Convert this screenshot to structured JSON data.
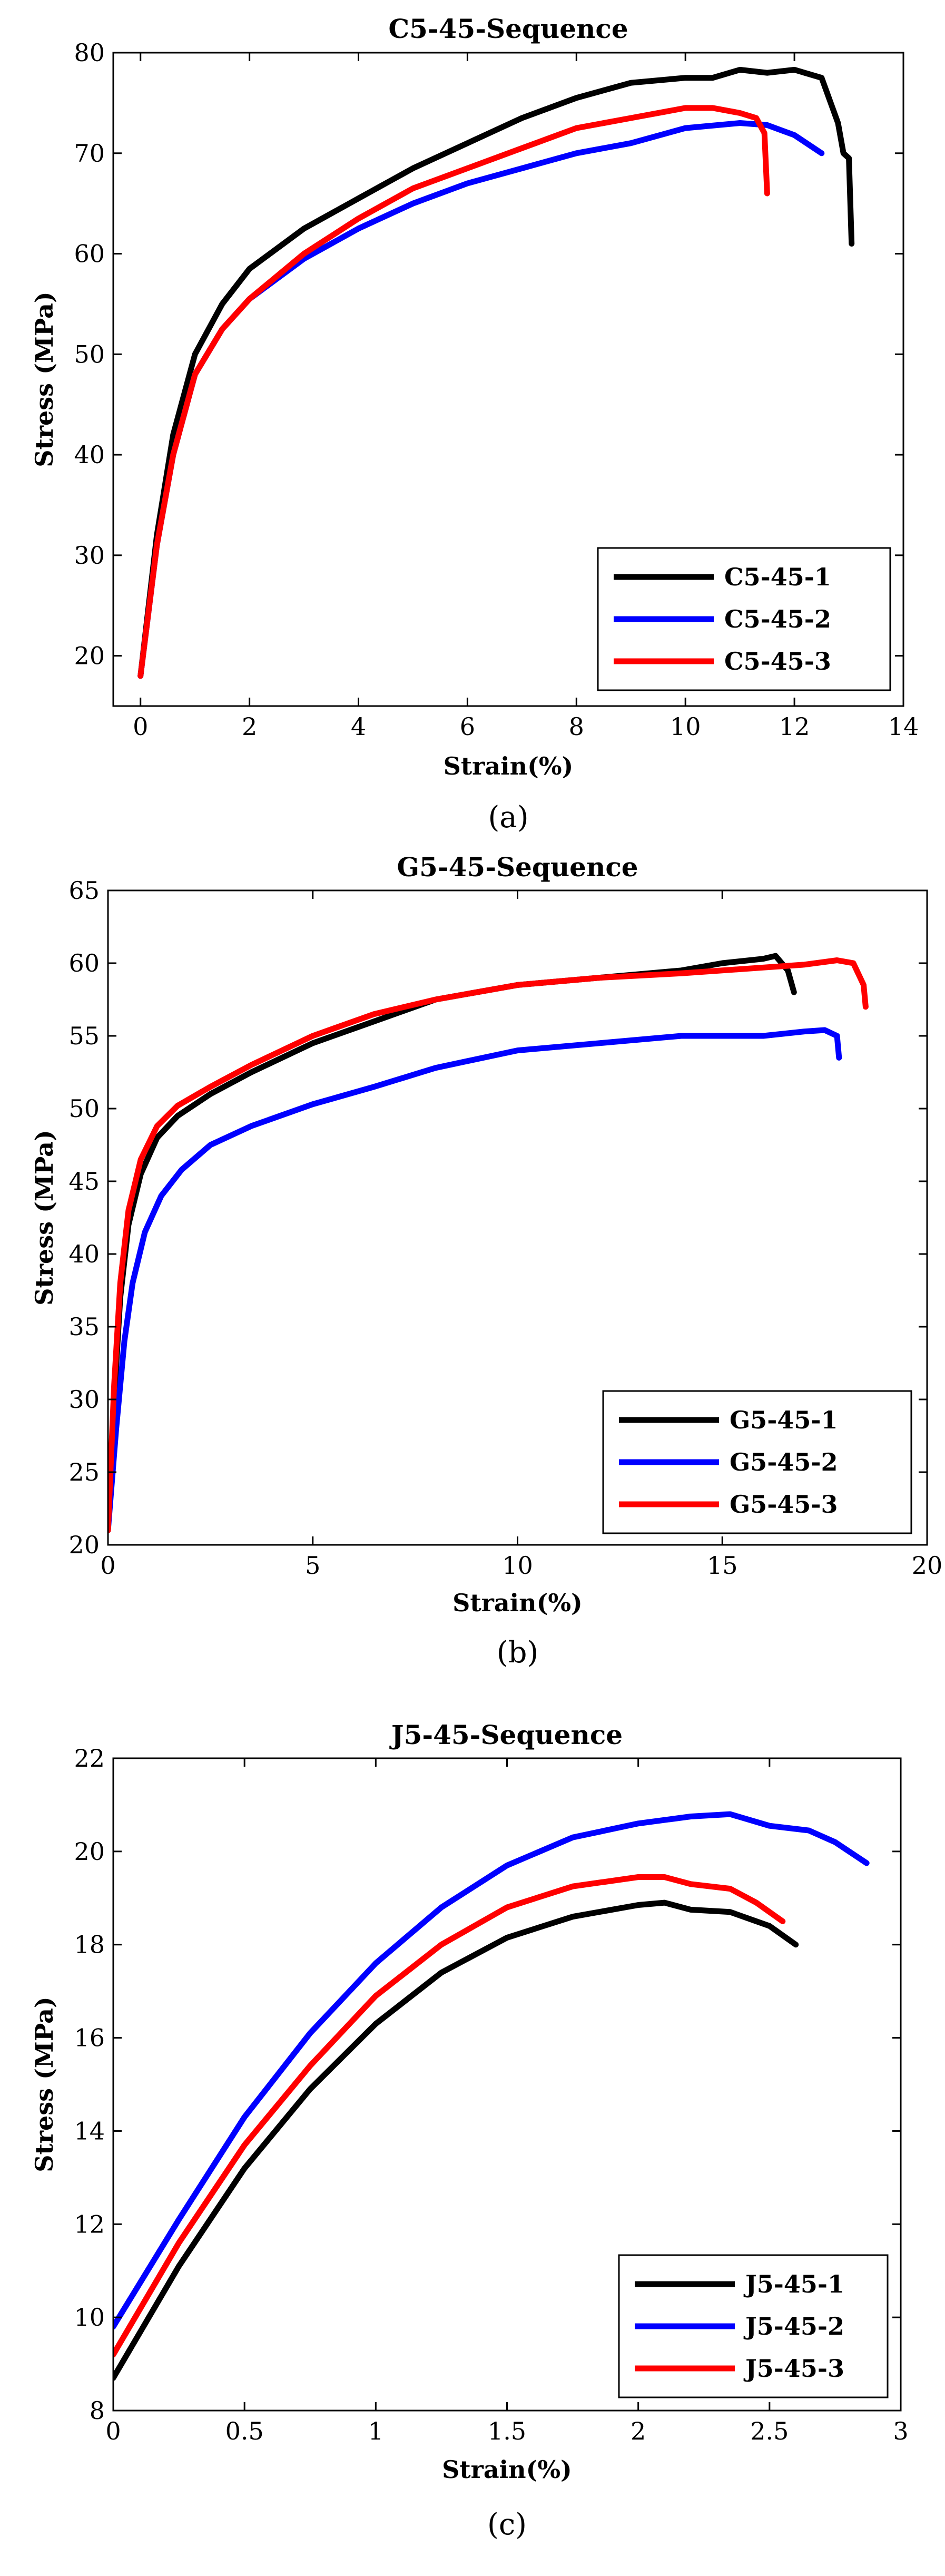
{
  "chart_data": [
    {
      "type": "line",
      "caption": "(a)",
      "title": "C5-45-Sequence",
      "xlabel": "Strain(%)",
      "ylabel": "Stress (MPa)",
      "xlim": [
        -0.5,
        14
      ],
      "ylim": [
        15,
        80
      ],
      "xticks": [
        0,
        2,
        4,
        6,
        8,
        10,
        12,
        14
      ],
      "xtick_labels": [
        "0",
        "2",
        "4",
        "6",
        "8",
        "10",
        "12",
        "14"
      ],
      "yticks": [
        20,
        30,
        40,
        50,
        60,
        70,
        80
      ],
      "ytick_labels": [
        "20",
        "30",
        "40",
        "50",
        "60",
        "70",
        "80"
      ],
      "legend_position": "bottom-right",
      "series": [
        {
          "name": "C5-45-1",
          "color": "#000000",
          "x": [
            0,
            0.3,
            0.6,
            1.0,
            1.5,
            2,
            3,
            4,
            5,
            6,
            7,
            8,
            9,
            10,
            10.5,
            11,
            11.5,
            12,
            12.5,
            12.8,
            12.9,
            13.0,
            13.05
          ],
          "y": [
            18,
            32,
            42,
            50,
            55,
            58.5,
            62.5,
            65.5,
            68.5,
            71,
            73.5,
            75.5,
            77,
            77.5,
            77.5,
            78.3,
            78,
            78.3,
            77.5,
            73,
            70,
            69.5,
            61
          ]
        },
        {
          "name": "C5-45-2",
          "color": "#0000ff",
          "x": [
            0,
            0.3,
            0.6,
            1.0,
            1.5,
            2,
            3,
            4,
            5,
            6,
            7,
            8,
            9,
            10,
            11,
            11.5,
            12,
            12.5
          ],
          "y": [
            18,
            31,
            40,
            48,
            52.5,
            55.5,
            59.5,
            62.5,
            65,
            67,
            68.5,
            70,
            71,
            72.5,
            73,
            72.8,
            71.8,
            70
          ]
        },
        {
          "name": "C5-45-3",
          "color": "#ff0000",
          "x": [
            0,
            0.3,
            0.6,
            1.0,
            1.5,
            2,
            3,
            4,
            5,
            6,
            7,
            8,
            9,
            10,
            10.5,
            11,
            11.3,
            11.45,
            11.5
          ],
          "y": [
            18,
            31,
            40,
            48,
            52.5,
            55.5,
            60,
            63.5,
            66.5,
            68.5,
            70.5,
            72.5,
            73.5,
            74.5,
            74.5,
            74,
            73.5,
            72,
            66
          ]
        }
      ]
    },
    {
      "type": "line",
      "caption": "(b)",
      "title": "G5-45-Sequence",
      "xlabel": "Strain(%)",
      "ylabel": "Stress (MPa)",
      "xlim": [
        0,
        20
      ],
      "ylim": [
        20,
        65
      ],
      "xticks": [
        0,
        5,
        10,
        15,
        20
      ],
      "xtick_labels": [
        "0",
        "5",
        "10",
        "15",
        "20"
      ],
      "yticks": [
        20,
        25,
        30,
        35,
        40,
        45,
        50,
        55,
        60,
        65
      ],
      "ytick_labels": [
        "20",
        "25",
        "30",
        "35",
        "40",
        "45",
        "50",
        "55",
        "60",
        "65"
      ],
      "legend_position": "bottom-right",
      "series": [
        {
          "name": "G5-45-1",
          "color": "#000000",
          "x": [
            0,
            0.15,
            0.3,
            0.5,
            0.8,
            1.2,
            1.7,
            2.5,
            3.5,
            5,
            6.5,
            8,
            10,
            12,
            14,
            15,
            16,
            16.3,
            16.6,
            16.75
          ],
          "y": [
            21,
            30,
            37,
            42,
            45.5,
            48,
            49.5,
            51,
            52.5,
            54.5,
            56,
            57.5,
            58.5,
            59,
            59.5,
            60,
            60.3,
            60.5,
            59.5,
            58
          ]
        },
        {
          "name": "G5-45-2",
          "color": "#0000ff",
          "x": [
            0,
            0.2,
            0.4,
            0.6,
            0.9,
            1.3,
            1.8,
            2.5,
            3.5,
            5,
            6.5,
            8,
            10,
            12,
            14,
            16,
            17,
            17.5,
            17.8,
            17.85
          ],
          "y": [
            21,
            28,
            34,
            38,
            41.5,
            44,
            45.8,
            47.5,
            48.8,
            50.3,
            51.5,
            52.8,
            54,
            54.5,
            55,
            55,
            55.3,
            55.4,
            55,
            53.5
          ]
        },
        {
          "name": "G5-45-3",
          "color": "#ff0000",
          "x": [
            0,
            0.15,
            0.3,
            0.5,
            0.8,
            1.2,
            1.7,
            2.5,
            3.5,
            5,
            6.5,
            8,
            10,
            12,
            14,
            16,
            17,
            17.8,
            18.2,
            18.45,
            18.5
          ],
          "y": [
            21,
            31,
            38,
            43,
            46.5,
            48.8,
            50.2,
            51.5,
            53,
            55,
            56.5,
            57.5,
            58.5,
            59,
            59.3,
            59.7,
            59.9,
            60.2,
            60,
            58.5,
            57
          ]
        }
      ]
    },
    {
      "type": "line",
      "caption": "(c)",
      "title": "J5-45-Sequence",
      "xlabel": "Strain(%)",
      "ylabel": "Stress (MPa)",
      "xlim": [
        0,
        3
      ],
      "ylim": [
        8,
        22
      ],
      "xticks": [
        0,
        0.5,
        1,
        1.5,
        2,
        2.5,
        3
      ],
      "xtick_labels": [
        "0",
        "0.5",
        "1",
        "1.5",
        "2",
        "2.5",
        "3"
      ],
      "yticks": [
        8,
        10,
        12,
        14,
        16,
        18,
        20,
        22
      ],
      "ytick_labels": [
        "8",
        "10",
        "12",
        "14",
        "16",
        "18",
        "20",
        "22"
      ],
      "legend_position": "bottom-right",
      "series": [
        {
          "name": "J5-45-1",
          "color": "#000000",
          "x": [
            0,
            0.25,
            0.5,
            0.75,
            1.0,
            1.25,
            1.5,
            1.75,
            2.0,
            2.1,
            2.2,
            2.35,
            2.5,
            2.6
          ],
          "y": [
            8.7,
            11.1,
            13.2,
            14.9,
            16.3,
            17.4,
            18.15,
            18.6,
            18.85,
            18.9,
            18.75,
            18.7,
            18.4,
            18.0
          ]
        },
        {
          "name": "J5-45-2",
          "color": "#0000ff",
          "x": [
            0,
            0.25,
            0.5,
            0.75,
            1.0,
            1.25,
            1.5,
            1.75,
            2.0,
            2.2,
            2.35,
            2.5,
            2.65,
            2.75,
            2.87
          ],
          "y": [
            9.8,
            12.1,
            14.3,
            16.1,
            17.6,
            18.8,
            19.7,
            20.3,
            20.6,
            20.75,
            20.8,
            20.55,
            20.45,
            20.2,
            19.75
          ]
        },
        {
          "name": "J5-45-3",
          "color": "#ff0000",
          "x": [
            0,
            0.25,
            0.5,
            0.75,
            1.0,
            1.25,
            1.5,
            1.75,
            2.0,
            2.1,
            2.2,
            2.35,
            2.45,
            2.55
          ],
          "y": [
            9.2,
            11.6,
            13.7,
            15.4,
            16.9,
            18.0,
            18.8,
            19.25,
            19.45,
            19.45,
            19.3,
            19.2,
            18.9,
            18.5
          ]
        }
      ]
    }
  ]
}
